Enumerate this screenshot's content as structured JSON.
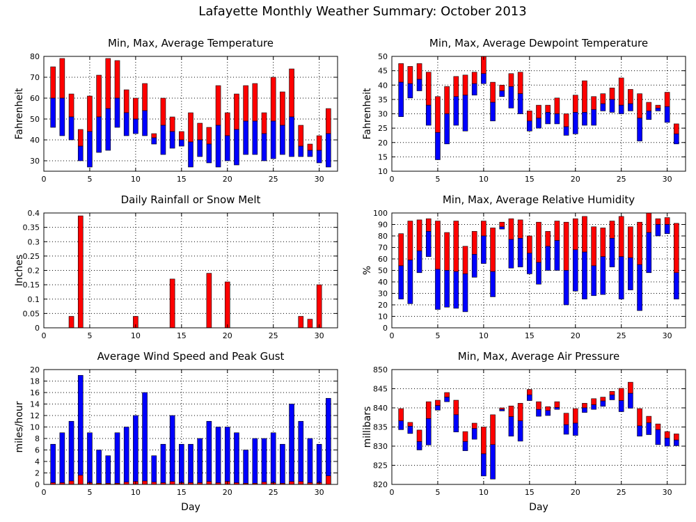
{
  "figure_title": "Lafayette Monthly Weather Summary: October 2013",
  "colors": {
    "upper": "#ff0000",
    "lower": "#0000ff",
    "frame": "#000000"
  },
  "chart_data": [
    {
      "id": "temperature",
      "type": "bar",
      "title": "Min, Max, Average Temperature",
      "ylabel": "Fahrenheit",
      "xlabel": "",
      "ylim": [
        25,
        80
      ],
      "yticks": [
        30,
        40,
        50,
        60,
        70,
        80
      ],
      "xlim": [
        0,
        32
      ],
      "xticks": [
        0,
        5,
        10,
        15,
        20,
        25,
        30
      ],
      "grid": true,
      "x": [
        1,
        2,
        3,
        4,
        5,
        6,
        7,
        8,
        9,
        10,
        11,
        12,
        13,
        14,
        15,
        16,
        17,
        18,
        19,
        20,
        21,
        22,
        23,
        24,
        25,
        26,
        27,
        28,
        29,
        30,
        31
      ],
      "series": [
        {
          "name": "Max",
          "color": "#ff0000",
          "values": [
            75,
            79,
            62,
            45,
            61,
            71,
            79,
            78,
            64,
            60,
            67,
            43,
            60,
            51,
            44,
            53,
            48,
            46,
            66,
            53,
            62,
            66,
            67,
            53,
            70,
            63,
            74,
            47,
            38,
            42,
            55
          ]
        },
        {
          "name": "Average",
          "color": "#0000ff",
          "values": [
            60,
            60,
            51,
            37,
            44,
            51,
            55,
            60,
            53,
            50,
            54,
            41,
            47,
            44,
            40,
            39,
            40,
            38,
            47,
            42,
            45,
            49,
            49,
            43,
            49,
            47,
            51,
            37,
            35,
            35,
            43
          ]
        },
        {
          "name": "Min",
          "color": "#0000ff",
          "values": [
            46,
            42,
            40,
            30,
            27,
            34,
            35,
            46,
            42,
            43,
            42,
            38,
            33,
            36,
            37,
            27,
            32,
            29,
            27,
            30,
            28,
            33,
            33,
            30,
            31,
            33,
            32,
            32,
            32,
            29,
            27
          ]
        }
      ]
    },
    {
      "id": "dewpoint",
      "type": "bar",
      "title": "Min, Max, Average Dewpoint Temperature",
      "ylabel": "Fahrenheit",
      "xlabel": "",
      "ylim": [
        10,
        50
      ],
      "yticks": [
        10,
        15,
        20,
        25,
        30,
        35,
        40,
        45,
        50
      ],
      "xlim": [
        0,
        32
      ],
      "xticks": [
        0,
        5,
        10,
        15,
        20,
        25,
        30
      ],
      "grid": true,
      "x": [
        1,
        2,
        3,
        4,
        5,
        6,
        7,
        8,
        9,
        10,
        11,
        12,
        13,
        14,
        15,
        16,
        17,
        18,
        19,
        20,
        21,
        22,
        23,
        24,
        25,
        26,
        27,
        28,
        29,
        30,
        31
      ],
      "series": [
        {
          "name": "Max",
          "color": "#ff0000",
          "values": [
            47.5,
            46.5,
            47.5,
            44.5,
            36,
            39.5,
            43,
            43.5,
            44.5,
            50,
            41,
            40,
            44,
            44.5,
            31,
            33,
            33,
            35.5,
            30,
            36.5,
            41.5,
            36,
            37,
            39,
            42.5,
            38.5,
            37,
            34,
            33,
            37.5,
            26.5
          ]
        },
        {
          "name": "Average",
          "color": "#0000ff",
          "values": [
            41,
            40.5,
            42,
            33,
            23.5,
            30,
            36,
            36.5,
            40.5,
            44,
            34,
            38,
            39.5,
            37,
            27.5,
            28.5,
            30.5,
            30,
            25.5,
            30.5,
            30.5,
            31.5,
            33.5,
            35,
            33,
            33.5,
            28.5,
            31,
            32,
            32.5,
            23
          ]
        },
        {
          "name": "Min",
          "color": "#0000ff",
          "values": [
            29,
            35.5,
            38,
            26,
            14,
            19.5,
            26,
            24,
            36.5,
            40.5,
            27.5,
            36,
            32,
            30,
            24,
            25,
            26.5,
            26.5,
            22.5,
            23,
            26,
            26,
            31,
            30.5,
            30,
            31,
            20.5,
            28,
            31,
            27,
            19.5
          ]
        }
      ]
    },
    {
      "id": "rainfall",
      "type": "bar",
      "title": "Daily Rainfall or Snow Melt",
      "ylabel": "Inches",
      "xlabel": "",
      "ylim": [
        0,
        0.4
      ],
      "yticks": [
        0,
        0.05,
        0.1,
        0.15,
        0.2,
        0.25,
        0.3,
        0.35,
        0.4
      ],
      "ytick_labels": [
        "0",
        "0.05",
        "0.1",
        "0.15",
        "0.2",
        "0.25",
        "0.3",
        "0.35",
        "0.4"
      ],
      "xlim": [
        0,
        32
      ],
      "xticks": [
        0,
        5,
        10,
        15,
        20,
        25,
        30
      ],
      "grid": true,
      "x": [
        3,
        4,
        10,
        14,
        18,
        20,
        28,
        29,
        30
      ],
      "series": [
        {
          "name": "Rainfall",
          "color": "#ff0000",
          "values": [
            0.04,
            0.39,
            0.04,
            0.17,
            0.19,
            0.16,
            0.04,
            0.03,
            0.15
          ]
        }
      ]
    },
    {
      "id": "humidity",
      "type": "bar",
      "title": "Min, Max, Average Relative Humidity",
      "ylabel": "%",
      "xlabel": "",
      "ylim": [
        0,
        100
      ],
      "yticks": [
        0,
        10,
        20,
        30,
        40,
        50,
        60,
        70,
        80,
        90,
        100
      ],
      "xlim": [
        0,
        32
      ],
      "xticks": [
        0,
        5,
        10,
        15,
        20,
        25,
        30
      ],
      "grid": true,
      "x": [
        1,
        2,
        3,
        4,
        5,
        6,
        7,
        8,
        9,
        10,
        11,
        12,
        13,
        14,
        15,
        16,
        17,
        18,
        19,
        20,
        21,
        22,
        23,
        24,
        25,
        26,
        27,
        28,
        29,
        30,
        31
      ],
      "series": [
        {
          "name": "Max",
          "color": "#ff0000",
          "values": [
            82,
            93,
            94,
            95,
            93,
            83,
            93,
            71,
            84,
            93,
            87,
            92,
            95,
            94,
            80,
            92,
            84,
            93,
            92,
            95,
            97,
            88,
            87,
            93,
            97,
            88,
            92,
            100,
            95,
            96,
            91
          ]
        },
        {
          "name": "Average",
          "color": "#0000ff",
          "values": [
            54,
            59,
            67,
            84,
            51,
            50,
            49,
            47,
            64,
            80,
            49,
            88,
            77,
            78,
            65,
            57,
            71,
            76,
            50,
            68,
            66,
            54,
            62,
            78,
            62,
            61,
            55,
            83,
            90,
            90,
            48
          ]
        },
        {
          "name": "Min",
          "color": "#0000ff",
          "values": [
            25,
            21,
            48,
            62,
            16,
            18,
            17,
            14,
            44,
            56,
            27,
            86,
            52,
            53,
            47,
            38,
            50,
            50,
            20,
            32,
            25,
            28,
            29,
            53,
            25,
            33,
            15,
            48,
            80,
            82,
            25
          ]
        }
      ]
    },
    {
      "id": "wind",
      "type": "bar",
      "title": "Average Wind Speed and Peak Gust",
      "ylabel": "miles/hour",
      "xlabel": "Day",
      "ylim": [
        0,
        20
      ],
      "yticks": [
        0,
        2,
        4,
        6,
        8,
        10,
        12,
        14,
        16,
        18,
        20
      ],
      "xlim": [
        0,
        32
      ],
      "xticks": [
        0,
        5,
        10,
        15,
        20,
        25,
        30
      ],
      "grid": true,
      "x": [
        1,
        2,
        3,
        4,
        5,
        6,
        7,
        8,
        9,
        10,
        11,
        12,
        13,
        14,
        15,
        16,
        17,
        18,
        19,
        20,
        21,
        22,
        23,
        24,
        25,
        26,
        27,
        28,
        29,
        30,
        31
      ],
      "series": [
        {
          "name": "Peak Gust",
          "color": "#0000ff",
          "values": [
            7,
            9,
            11,
            19,
            9,
            6,
            5,
            9,
            10,
            12,
            16,
            5,
            7,
            12,
            7,
            7,
            8,
            11,
            10,
            10,
            9,
            6,
            8,
            8,
            9,
            7,
            14,
            11,
            8,
            7,
            15
          ]
        },
        {
          "name": "Average Wind Speed",
          "color": "#ff0000",
          "values": [
            0.3,
            0.3,
            0.6,
            1.6,
            0.3,
            0.2,
            0.2,
            0.2,
            0.4,
            0.5,
            0.6,
            0.4,
            0.3,
            0.5,
            0.3,
            0.3,
            0.3,
            0.5,
            0.3,
            0.5,
            0.3,
            0.2,
            0.2,
            0.4,
            0.3,
            0.2,
            0.5,
            0.5,
            0.3,
            0.3,
            1.5
          ]
        }
      ]
    },
    {
      "id": "pressure",
      "type": "bar",
      "title": "Min, Max, Average Air Pressure",
      "ylabel": "millibars",
      "xlabel": "Day",
      "ylim": [
        820,
        850
      ],
      "yticks": [
        820,
        825,
        830,
        835,
        840,
        845,
        850
      ],
      "xlim": [
        0,
        32
      ],
      "xticks": [
        0,
        5,
        10,
        15,
        20,
        25,
        30
      ],
      "grid": true,
      "x": [
        1,
        2,
        3,
        4,
        5,
        6,
        7,
        8,
        9,
        10,
        11,
        12,
        13,
        14,
        15,
        16,
        17,
        18,
        19,
        20,
        21,
        22,
        23,
        24,
        25,
        26,
        27,
        28,
        29,
        30,
        31
      ],
      "series": [
        {
          "name": "Max",
          "color": "#ff0000",
          "values": [
            839.8,
            836.2,
            834.2,
            841.6,
            842,
            844,
            842,
            833.8,
            836,
            835,
            838.2,
            840,
            840.5,
            841.2,
            844.8,
            841.6,
            840.3,
            841.6,
            838.6,
            839.8,
            841.2,
            842.4,
            842.8,
            844.3,
            845.1,
            846.7,
            839.8,
            837.8,
            835.8,
            833.8,
            833.2
          ]
        },
        {
          "name": "Average",
          "color": "#0000ff",
          "values": [
            836.6,
            835.2,
            831.2,
            837.2,
            840.6,
            842.8,
            838.2,
            831.2,
            834.6,
            828,
            830.4,
            839.6,
            837.7,
            836.6,
            843.4,
            839.6,
            839.3,
            840.1,
            835.6,
            836,
            840,
            840.8,
            841.8,
            843.4,
            841.9,
            843.8,
            835.3,
            836.1,
            834.3,
            832.1,
            831.6
          ]
        },
        {
          "name": "Min",
          "color": "#0000ff",
          "values": [
            834.3,
            833.3,
            829,
            830.3,
            839.4,
            841.6,
            833.7,
            828.8,
            831.8,
            822.2,
            821.4,
            839.2,
            832.6,
            831.3,
            841.9,
            837.8,
            838,
            839.6,
            833.1,
            832.8,
            838.8,
            839.6,
            840.4,
            842.1,
            839,
            839.9,
            832.6,
            833,
            830.4,
            830,
            830.1
          ]
        }
      ]
    }
  ]
}
